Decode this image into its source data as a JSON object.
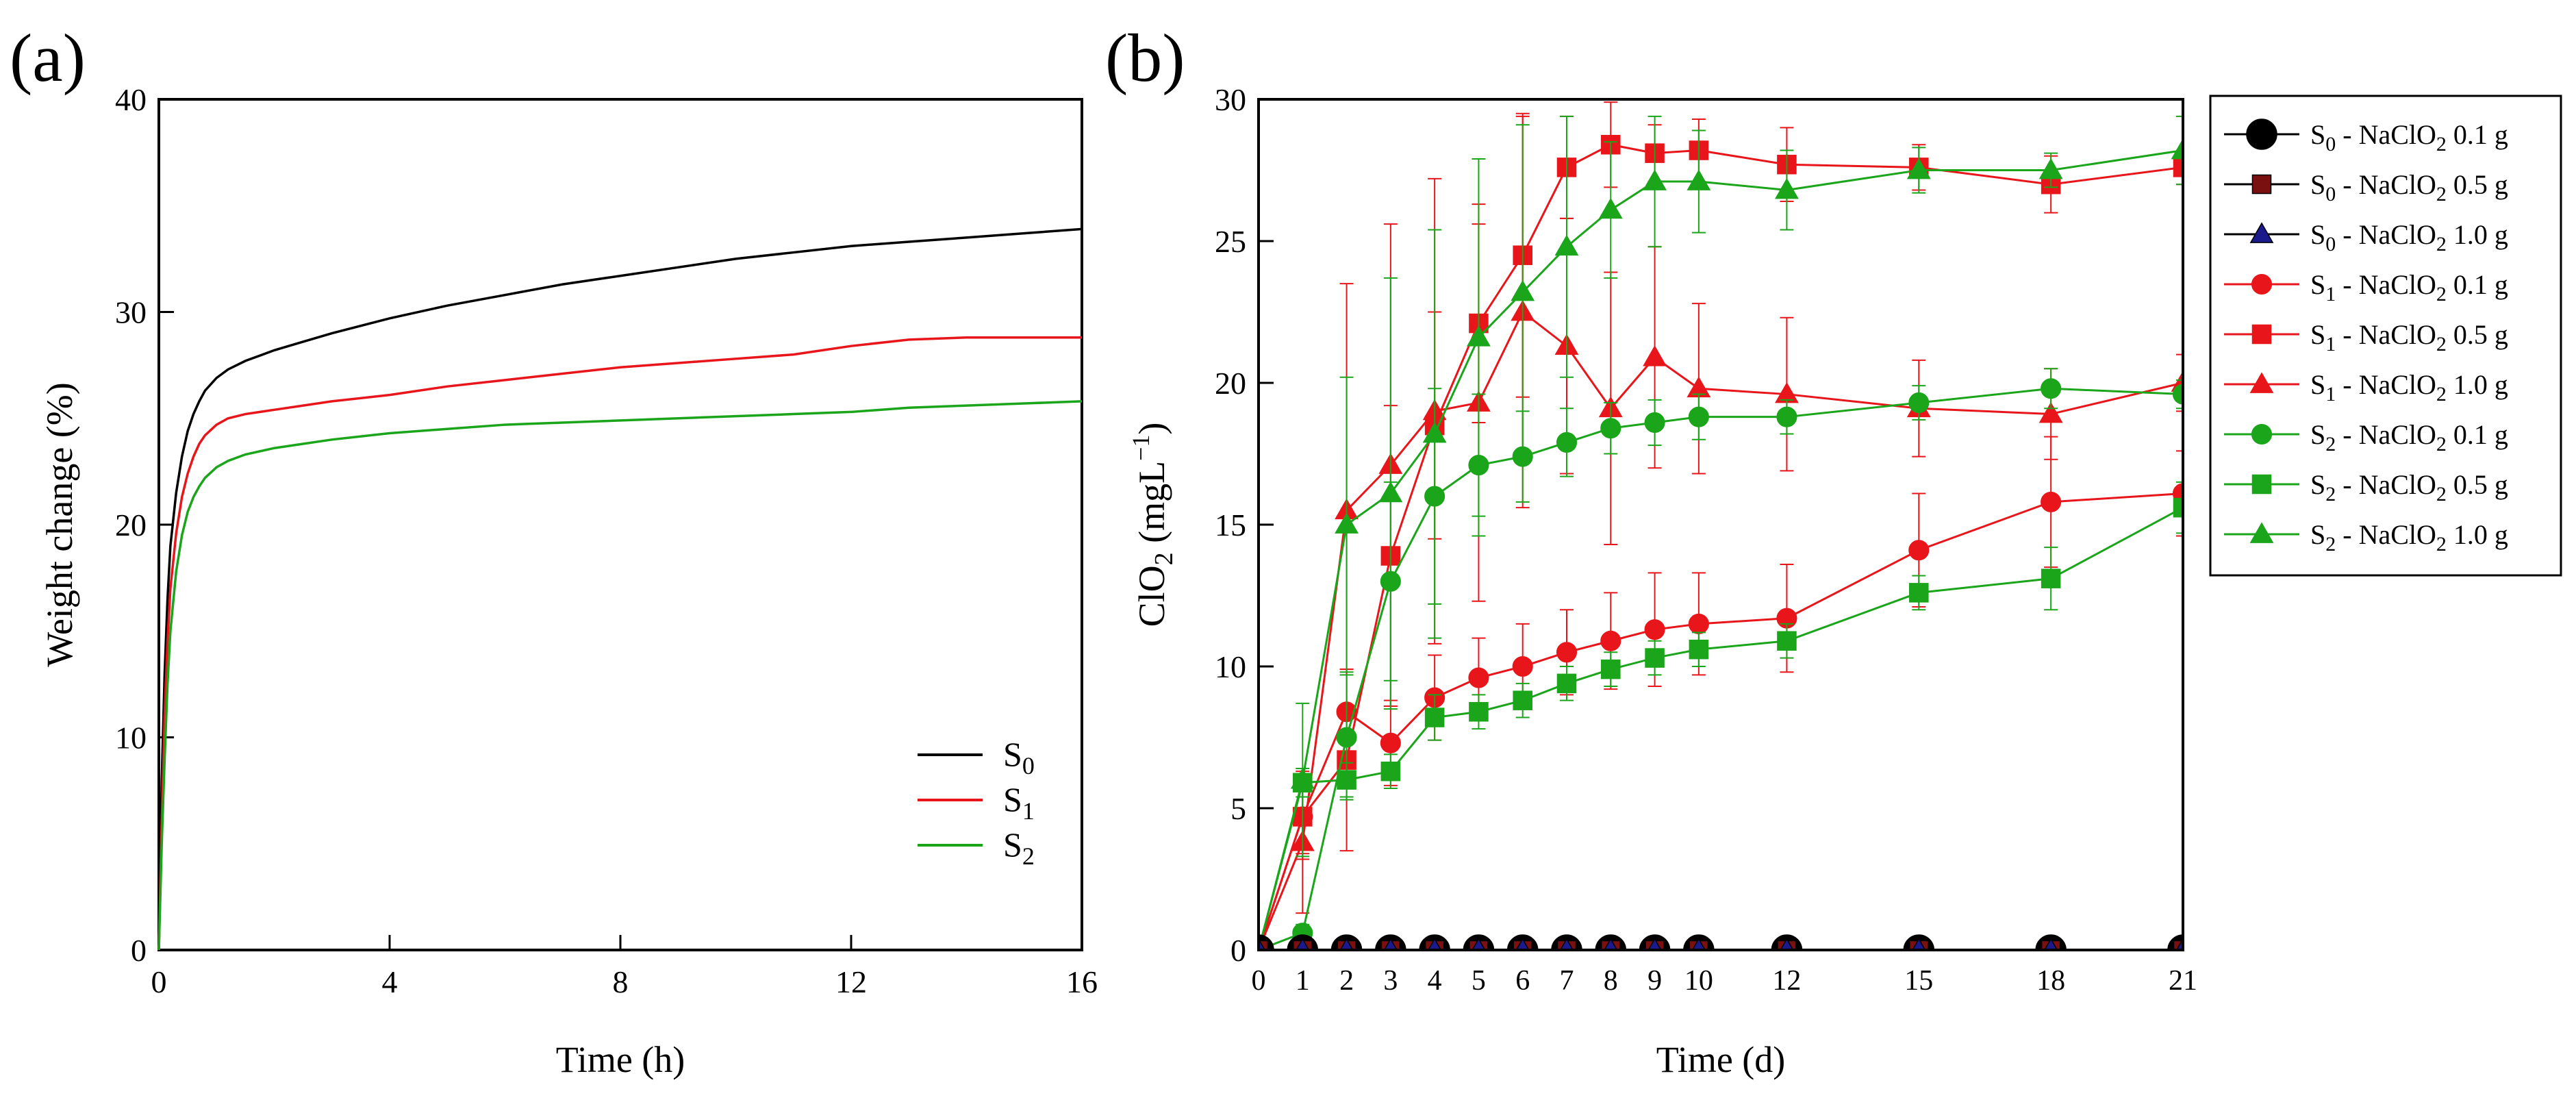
{
  "panels": {
    "a": {
      "label": "(a)"
    },
    "b": {
      "label": "(b)"
    }
  },
  "chart_data": [
    {
      "panel": "a",
      "type": "line",
      "title": "",
      "xlabel": "Time (h)",
      "ylabel": "Weight change (%)",
      "xlim": [
        0,
        16
      ],
      "ylim": [
        0,
        40
      ],
      "xticks": [
        0,
        4,
        8,
        12,
        16
      ],
      "yticks": [
        0,
        10,
        20,
        30,
        40
      ],
      "grid": false,
      "legend_position": "lower-right",
      "series": [
        {
          "name": "S0",
          "name_base": "S",
          "name_sub": "0",
          "color": "#000000",
          "x": [
            0,
            0.05,
            0.1,
            0.15,
            0.2,
            0.3,
            0.4,
            0.5,
            0.6,
            0.7,
            0.8,
            1.0,
            1.2,
            1.5,
            2,
            2.5,
            3,
            4,
            5,
            6,
            7,
            8,
            9,
            10,
            11,
            12,
            13,
            14,
            15,
            16
          ],
          "values": [
            0,
            8,
            13,
            16.5,
            19,
            21.5,
            23.2,
            24.4,
            25.2,
            25.8,
            26.3,
            26.9,
            27.3,
            27.7,
            28.2,
            28.6,
            29.0,
            29.7,
            30.3,
            30.8,
            31.3,
            31.7,
            32.1,
            32.5,
            32.8,
            33.1,
            33.3,
            33.5,
            33.7,
            33.9
          ]
        },
        {
          "name": "S1",
          "name_base": "S",
          "name_sub": "1",
          "color": "#e8161b",
          "x": [
            0,
            0.05,
            0.1,
            0.15,
            0.2,
            0.3,
            0.4,
            0.5,
            0.6,
            0.7,
            0.8,
            1.0,
            1.2,
            1.5,
            2,
            2.5,
            3,
            4,
            5,
            6,
            7,
            8,
            9,
            10,
            11,
            12,
            13,
            14,
            15,
            16
          ],
          "values": [
            0,
            6,
            11,
            14.5,
            17,
            19.6,
            21.3,
            22.4,
            23.2,
            23.8,
            24.2,
            24.7,
            25.0,
            25.2,
            25.4,
            25.6,
            25.8,
            26.1,
            26.5,
            26.8,
            27.1,
            27.4,
            27.6,
            27.8,
            28.0,
            28.4,
            28.7,
            28.8,
            28.8,
            28.8
          ]
        },
        {
          "name": "S2",
          "name_base": "S",
          "name_sub": "2",
          "color": "#1aa51a",
          "x": [
            0,
            0.05,
            0.1,
            0.15,
            0.2,
            0.3,
            0.4,
            0.5,
            0.6,
            0.7,
            0.8,
            1.0,
            1.2,
            1.5,
            2,
            2.5,
            3,
            4,
            5,
            6,
            7,
            8,
            9,
            10,
            11,
            12,
            13,
            14,
            15,
            16
          ],
          "values": [
            0,
            5,
            9,
            12.5,
            15,
            17.8,
            19.5,
            20.6,
            21.3,
            21.8,
            22.2,
            22.7,
            23.0,
            23.3,
            23.6,
            23.8,
            24.0,
            24.3,
            24.5,
            24.7,
            24.8,
            24.9,
            25.0,
            25.1,
            25.2,
            25.3,
            25.5,
            25.6,
            25.7,
            25.8
          ]
        }
      ]
    },
    {
      "panel": "b",
      "type": "line",
      "title": "",
      "xlabel": "Time (d)",
      "ylabel": "ClO2 (mgL-1)",
      "ylabel_base": "ClO",
      "ylabel_sub": "2",
      "ylabel_unit": "mgL",
      "ylabel_sup": "−1",
      "xlim": [
        0,
        21
      ],
      "ylim": [
        0,
        30
      ],
      "xticks": [
        0,
        1,
        2,
        3,
        4,
        5,
        6,
        7,
        8,
        9,
        10,
        12,
        15,
        18,
        21
      ],
      "yticks": [
        0,
        5,
        10,
        15,
        20,
        25,
        30
      ],
      "grid": false,
      "legend_position": "outside-right",
      "x": [
        0,
        1,
        2,
        3,
        4,
        5,
        6,
        7,
        8,
        9,
        10,
        12,
        15,
        18,
        21
      ],
      "series": [
        {
          "name": "S0 - NaClO2 0.1 g",
          "base": "S",
          "sub": "0",
          "mid": " - NaClO",
          "sub2": "2",
          "tail": " 0.1 g",
          "color": "#000000",
          "marker": "circle",
          "marker_fill": "#000000",
          "values": [
            0,
            0,
            0,
            0,
            0,
            0,
            0,
            0,
            0,
            0,
            0,
            0,
            0,
            0,
            0
          ],
          "err": [
            0,
            0,
            0,
            0,
            0,
            0,
            0,
            0,
            0,
            0,
            0,
            0,
            0,
            0,
            0
          ]
        },
        {
          "name": "S0 - NaClO2 0.5 g",
          "base": "S",
          "sub": "0",
          "mid": " - NaClO",
          "sub2": "2",
          "tail": " 0.5 g",
          "color": "#000000",
          "marker": "square",
          "marker_fill": "#7a1010",
          "values": [
            0,
            0,
            0,
            0,
            0,
            0,
            0,
            0,
            0,
            0,
            0,
            0,
            0,
            0,
            0
          ],
          "err": [
            0,
            0,
            0,
            0,
            0,
            0,
            0,
            0,
            0,
            0,
            0,
            0,
            0,
            0,
            0
          ]
        },
        {
          "name": "S0 - NaClO2 1.0 g",
          "base": "S",
          "sub": "0",
          "mid": " - NaClO",
          "sub2": "2",
          "tail": " 1.0 g",
          "color": "#000000",
          "marker": "triangle",
          "marker_fill": "#1a1a8c",
          "values": [
            0,
            0,
            0,
            0,
            0,
            0,
            0,
            0,
            0,
            0,
            0,
            0,
            0,
            0,
            0
          ],
          "err": [
            0,
            0,
            0,
            0,
            0,
            0,
            0,
            0,
            0,
            0,
            0,
            0,
            0,
            0,
            0
          ]
        },
        {
          "name": "S1 - NaClO2 0.1 g",
          "base": "S",
          "sub": "1",
          "mid": " - NaClO",
          "sub2": "2",
          "tail": " 0.1 g",
          "color": "#e8161b",
          "marker": "circle",
          "marker_fill": "#e8161b",
          "values": [
            0,
            4.7,
            8.4,
            7.3,
            8.9,
            9.6,
            10.0,
            10.5,
            10.9,
            11.3,
            11.5,
            11.7,
            14.1,
            15.8,
            16.1
          ],
          "err": [
            0,
            1.5,
            1.5,
            1.5,
            1.5,
            1.4,
            1.5,
            1.5,
            1.7,
            2.0,
            1.8,
            1.9,
            2.0,
            2.3,
            1.5
          ]
        },
        {
          "name": "S1 - NaClO2 0.5 g",
          "base": "S",
          "sub": "1",
          "mid": " - NaClO",
          "sub2": "2",
          "tail": " 0.5 g",
          "color": "#e8161b",
          "marker": "square",
          "marker_fill": "#e8161b",
          "values": [
            0,
            4.7,
            6.7,
            13.9,
            18.5,
            22.1,
            24.5,
            27.6,
            28.4,
            28.1,
            28.2,
            27.7,
            27.6,
            27.0,
            27.6
          ],
          "err": [
            0,
            1.3,
            3.2,
            5.3,
            4.0,
            3.5,
            5.0,
            1.8,
            1.5,
            1.0,
            1.1,
            1.3,
            0.8,
            1.0,
            0.6
          ]
        },
        {
          "name": "S1 - NaClO2 1.0 g",
          "base": "S",
          "sub": "1",
          "mid": " - NaClO",
          "sub2": "2",
          "tail": " 1.0 g",
          "color": "#e8161b",
          "marker": "triangle",
          "marker_fill": "#e8161b",
          "values": [
            0,
            3.8,
            15.5,
            17.1,
            19.0,
            19.3,
            22.5,
            21.3,
            19.1,
            20.9,
            19.8,
            19.6,
            19.1,
            18.9,
            20.0
          ],
          "err": [
            0,
            2.5,
            8.0,
            8.5,
            8.2,
            7.0,
            6.9,
            4.5,
            4.8,
            3.9,
            3.0,
            2.7,
            1.7,
            1.6,
            1.0
          ]
        },
        {
          "name": "S2 - NaClO2 0.1 g",
          "base": "S",
          "sub": "2",
          "mid": " - NaClO",
          "sub2": "2",
          "tail": " 0.1 g",
          "color": "#1aa51a",
          "marker": "circle",
          "marker_fill": "#1aa51a",
          "values": [
            0,
            0.6,
            7.5,
            13.0,
            16.0,
            17.1,
            17.4,
            17.9,
            18.4,
            18.6,
            18.8,
            18.8,
            19.3,
            19.8,
            19.6
          ],
          "err": [
            0,
            0.3,
            2.2,
            3.5,
            3.8,
            2.5,
            1.6,
            1.2,
            0.9,
            0.8,
            0.8,
            0.6,
            0.6,
            0.7,
            0.5
          ]
        },
        {
          "name": "S2 - NaClO2 0.5 g",
          "base": "S",
          "sub": "2",
          "mid": " - NaClO",
          "sub2": "2",
          "tail": " 0.5 g",
          "color": "#1aa51a",
          "marker": "square",
          "marker_fill": "#1aa51a",
          "values": [
            0,
            5.9,
            6.0,
            6.3,
            8.2,
            8.4,
            8.8,
            9.4,
            9.9,
            10.3,
            10.6,
            10.9,
            12.6,
            13.1,
            15.6
          ],
          "err": [
            0,
            0.5,
            0.6,
            0.6,
            0.8,
            0.6,
            0.6,
            0.6,
            0.6,
            0.6,
            0.6,
            0.6,
            0.6,
            1.1,
            0.9
          ]
        },
        {
          "name": "S2 - NaClO2 1.0 g",
          "base": "S",
          "sub": "2",
          "mid": " - NaClO",
          "sub2": "2",
          "tail": " 1.0 g",
          "color": "#1aa51a",
          "marker": "triangle",
          "marker_fill": "#1aa51a",
          "values": [
            0,
            6.0,
            15.0,
            16.1,
            18.2,
            21.6,
            23.2,
            24.8,
            26.1,
            27.1,
            27.1,
            26.8,
            27.5,
            27.5,
            28.2
          ],
          "err": [
            0,
            2.7,
            5.2,
            7.6,
            7.2,
            6.3,
            5.9,
            4.6,
            2.4,
            2.3,
            1.8,
            1.4,
            0.8,
            0.6,
            1.2
          ]
        }
      ]
    }
  ]
}
